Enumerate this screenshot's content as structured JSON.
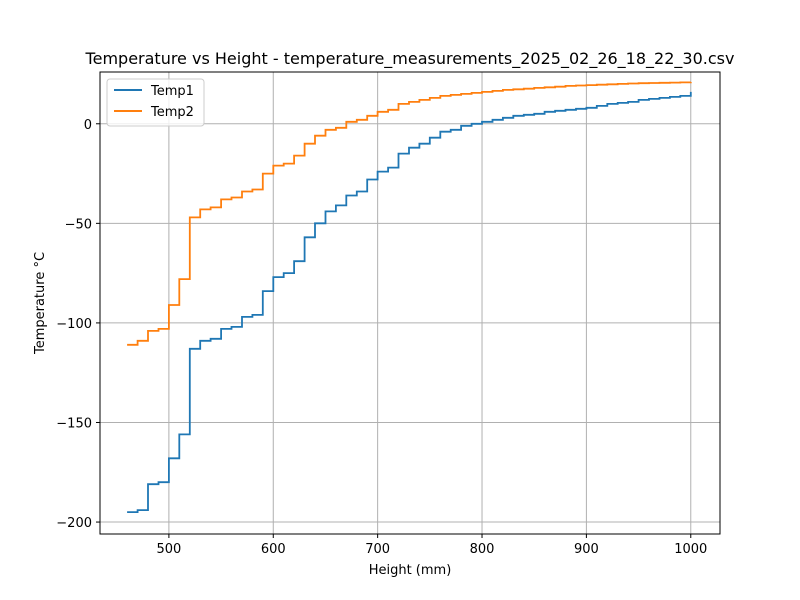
{
  "chart_data": {
    "type": "line",
    "title": "Temperature vs Height - temperature_measurements_2025_02_26_18_22_30.csv",
    "xlabel": "Height (mm)",
    "ylabel": "Temperature °C",
    "xlim": [
      434,
      1028
    ],
    "ylim": [
      -206,
      26
    ],
    "xticks": [
      500,
      600,
      700,
      800,
      900,
      1000
    ],
    "yticks": [
      -200,
      -150,
      -100,
      -50,
      0
    ],
    "grid": true,
    "legend_position": "upper-left",
    "series": [
      {
        "name": "Temp1",
        "color": "#1f77b4",
        "x": [
          460,
          470,
          480,
          490,
          500,
          510,
          520,
          530,
          540,
          550,
          560,
          570,
          580,
          590,
          600,
          610,
          620,
          630,
          640,
          650,
          660,
          670,
          680,
          690,
          700,
          710,
          720,
          730,
          740,
          750,
          760,
          770,
          780,
          790,
          800,
          810,
          820,
          830,
          840,
          850,
          860,
          870,
          880,
          890,
          900,
          910,
          920,
          930,
          940,
          950,
          960,
          970,
          980,
          990,
          1000
        ],
        "y": [
          -195,
          -194,
          -181,
          -180,
          -168,
          -156,
          -113,
          -109,
          -108,
          -103,
          -102,
          -97,
          -96,
          -84,
          -77,
          -75,
          -69,
          -57,
          -50,
          -44,
          -41,
          -36,
          -34,
          -28,
          -24,
          -22,
          -15,
          -12,
          -10,
          -7,
          -4,
          -3,
          -1,
          0,
          1,
          2,
          3,
          4,
          4.5,
          5,
          6,
          6.5,
          7,
          7.5,
          8,
          9,
          10,
          10.5,
          11,
          12,
          12.5,
          13,
          13.5,
          14,
          16
        ]
      },
      {
        "name": "Temp2",
        "color": "#ff7f0e",
        "x": [
          460,
          470,
          480,
          490,
          500,
          510,
          520,
          530,
          540,
          550,
          560,
          570,
          580,
          590,
          600,
          610,
          620,
          630,
          640,
          650,
          660,
          670,
          680,
          690,
          700,
          710,
          720,
          730,
          740,
          750,
          760,
          770,
          780,
          790,
          800,
          810,
          820,
          830,
          840,
          850,
          860,
          870,
          880,
          890,
          900,
          910,
          920,
          930,
          940,
          950,
          960,
          970,
          980,
          990,
          1000
        ],
        "y": [
          -111,
          -109,
          -104,
          -103,
          -91,
          -78,
          -47,
          -43,
          -42,
          -38,
          -37,
          -34,
          -33,
          -25,
          -21,
          -20,
          -16,
          -10,
          -6,
          -3,
          -2,
          1,
          2,
          4,
          6,
          7,
          10,
          11,
          12,
          13,
          14,
          14.5,
          15,
          15.5,
          16,
          16.5,
          17,
          17.3,
          17.6,
          18,
          18.3,
          18.6,
          19,
          19.2,
          19.4,
          19.6,
          19.8,
          20,
          20.2,
          20.4,
          20.5,
          20.6,
          20.7,
          20.8,
          21
        ]
      }
    ]
  }
}
